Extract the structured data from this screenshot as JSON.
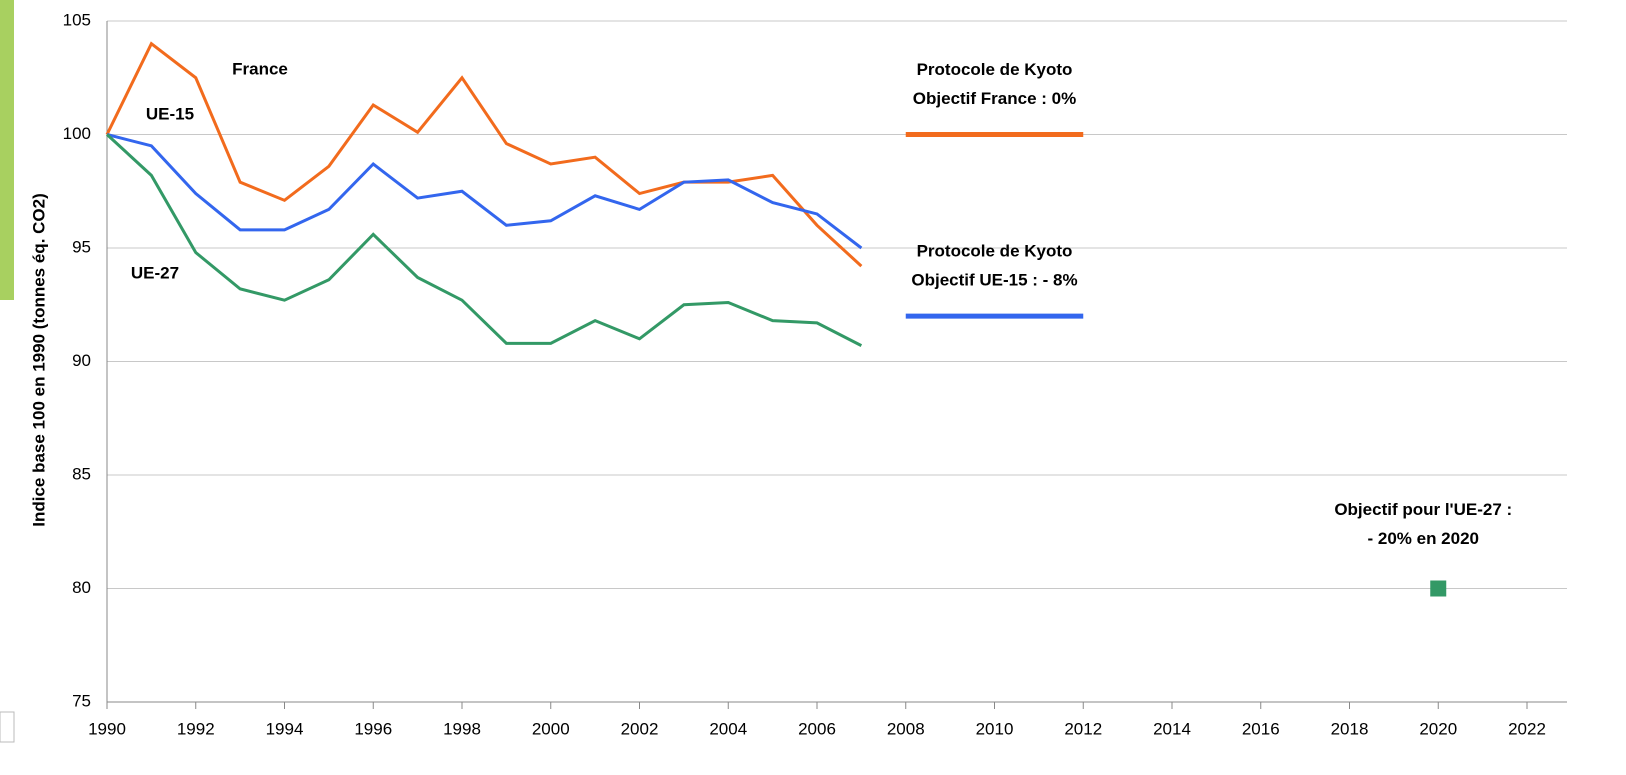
{
  "chart_data": {
    "type": "line",
    "ylabel": "Indice base 100 en 1990 (tonnes éq. CO2)",
    "x": [
      1990,
      1991,
      1992,
      1993,
      1994,
      1995,
      1996,
      1997,
      1998,
      1999,
      2000,
      2001,
      2002,
      2003,
      2004,
      2005,
      2006,
      2007
    ],
    "series": [
      {
        "name": "France",
        "color": "#f26b1d",
        "values": [
          100,
          104.0,
          102.5,
          97.9,
          97.1,
          98.6,
          101.3,
          100.1,
          102.5,
          99.6,
          98.7,
          99.0,
          97.4,
          97.9,
          97.9,
          98.2,
          96.0,
          94.2
        ]
      },
      {
        "name": "UE-15",
        "color": "#3366ee",
        "values": [
          100,
          99.5,
          97.4,
          95.8,
          95.8,
          96.7,
          98.7,
          97.2,
          97.5,
          96.0,
          96.2,
          97.3,
          96.7,
          97.9,
          98.0,
          97.0,
          96.5,
          95.0
        ]
      },
      {
        "name": "UE-27",
        "color": "#339966",
        "values": [
          100,
          98.2,
          94.8,
          93.2,
          92.7,
          93.6,
          95.6,
          93.7,
          92.7,
          90.8,
          90.8,
          91.8,
          91.0,
          92.5,
          92.6,
          91.8,
          91.7,
          90.7
        ]
      }
    ],
    "targets": [
      {
        "lines": [
          "Protocole de Kyoto",
          "Objectif France : 0%"
        ],
        "color": "#f26b1d",
        "x": [
          2008,
          2012
        ],
        "value": 100
      },
      {
        "lines": [
          "Protocole de Kyoto",
          "Objectif UE-15 : - 8%"
        ],
        "color": "#3366ee",
        "x": [
          2008,
          2012
        ],
        "value": 92
      }
    ],
    "point": {
      "lines": [
        "Objectif pour l'UE-27 :",
        "- 20% en 2020"
      ],
      "color": "#339966",
      "x": 2020,
      "value": 80
    },
    "xlim": [
      1990,
      2022
    ],
    "xticks": [
      1990,
      1992,
      1994,
      1996,
      1998,
      2000,
      2002,
      2004,
      2006,
      2008,
      2010,
      2012,
      2014,
      2016,
      2018,
      2020,
      2022
    ],
    "ylim": [
      75,
      105
    ],
    "yticks": [
      75,
      80,
      85,
      90,
      95,
      100,
      105
    ],
    "grid": true
  }
}
